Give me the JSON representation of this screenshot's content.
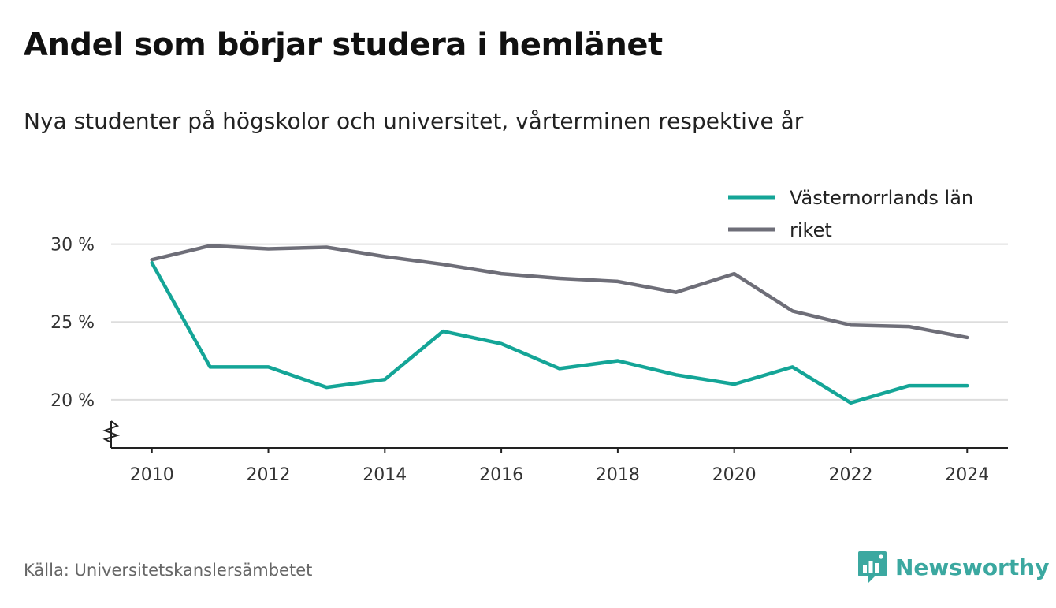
{
  "title": "Andel som börjar studera i hemlänet",
  "subtitle": "Nya studenter på högskolor och universitet, vårterminen respektive år",
  "source": "Källa: Universitetskanslersämbetet",
  "brand": {
    "name": "Newsworthy",
    "icon": "newsworthy-bar-chart-icon",
    "color": "#3ba8a0"
  },
  "chart_data": {
    "type": "line",
    "x": [
      2010,
      2011,
      2012,
      2013,
      2014,
      2015,
      2016,
      2017,
      2018,
      2019,
      2020,
      2021,
      2022,
      2023,
      2024
    ],
    "series": [
      {
        "name": "Västernorrlands län",
        "color": "#14a597",
        "values": [
          28.8,
          22.1,
          22.1,
          20.8,
          21.3,
          24.4,
          23.6,
          22.0,
          22.5,
          21.6,
          21.0,
          22.1,
          19.8,
          20.9,
          20.9
        ]
      },
      {
        "name": "riket",
        "color": "#6e6e78",
        "values": [
          29.0,
          29.9,
          29.7,
          29.8,
          29.2,
          28.7,
          28.1,
          27.8,
          27.6,
          26.9,
          28.1,
          25.7,
          24.8,
          24.7,
          24.0
        ]
      }
    ],
    "y_ticks": [
      {
        "value": 20,
        "label": "20 %"
      },
      {
        "value": 25,
        "label": "25 %"
      },
      {
        "value": 30,
        "label": "30 %"
      }
    ],
    "x_ticks": [
      {
        "value": 2010,
        "label": "2010"
      },
      {
        "value": 2012,
        "label": "2012"
      },
      {
        "value": 2014,
        "label": "2014"
      },
      {
        "value": 2016,
        "label": "2016"
      },
      {
        "value": 2018,
        "label": "2018"
      },
      {
        "value": 2020,
        "label": "2020"
      },
      {
        "value": 2022,
        "label": "2022"
      },
      {
        "value": 2024,
        "label": "2024"
      }
    ],
    "xlim": [
      2009.3,
      2024.7
    ],
    "ylim": [
      16.9,
      31.5
    ],
    "y_axis_break": true,
    "grid": true,
    "legend": "top-right"
  }
}
